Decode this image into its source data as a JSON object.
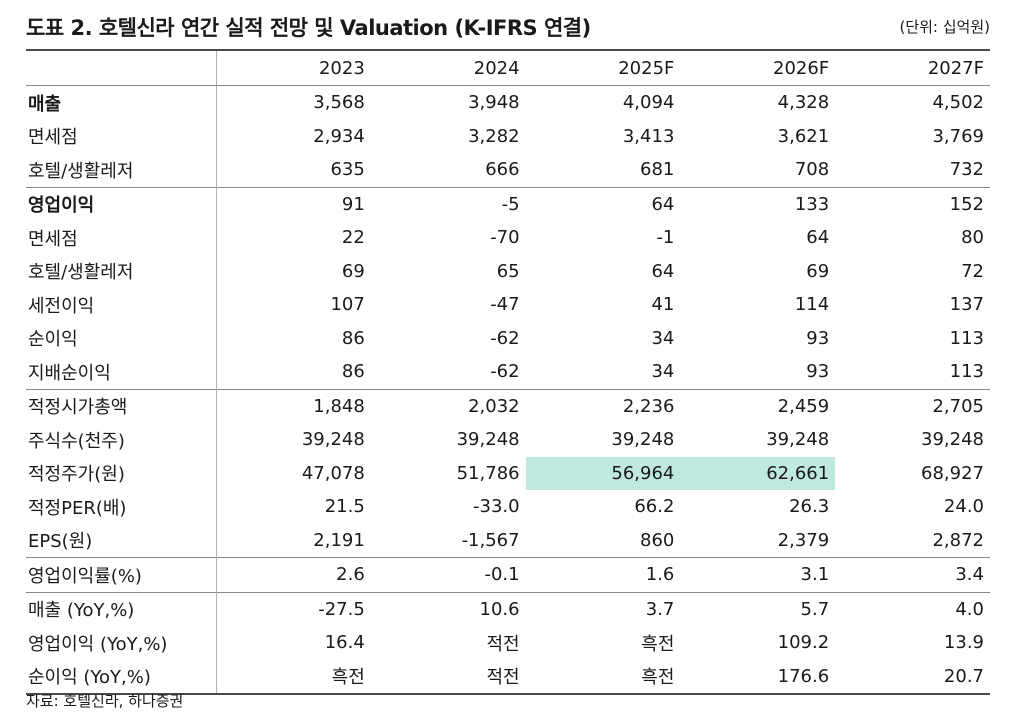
{
  "header": {
    "title": "도표 2. 호텔신라 연간 실적 전망 및 Valuation (K-IFRS 연결)",
    "unit": "(단위: 십억원)"
  },
  "table": {
    "columns": [
      "2023",
      "2024",
      "2025F",
      "2026F",
      "2027F"
    ],
    "rows": [
      {
        "label": "매출",
        "values": [
          "3,568",
          "3,948",
          "4,094",
          "4,328",
          "4,502"
        ]
      },
      {
        "label": "면세점",
        "values": [
          "2,934",
          "3,282",
          "3,413",
          "3,621",
          "3,769"
        ]
      },
      {
        "label": "호텔/생활레저",
        "values": [
          "635",
          "666",
          "681",
          "708",
          "732"
        ]
      },
      {
        "label": "영업이익",
        "values": [
          "91",
          "-5",
          "64",
          "133",
          "152"
        ]
      },
      {
        "label": "면세점",
        "values": [
          "22",
          "-70",
          "-1",
          "64",
          "80"
        ]
      },
      {
        "label": "호텔/생활레저",
        "values": [
          "69",
          "65",
          "64",
          "69",
          "72"
        ]
      },
      {
        "label": "세전이익",
        "values": [
          "107",
          "-47",
          "41",
          "114",
          "137"
        ]
      },
      {
        "label": "순이익",
        "values": [
          "86",
          "-62",
          "34",
          "93",
          "113"
        ]
      },
      {
        "label": "지배순이익",
        "values": [
          "86",
          "-62",
          "34",
          "93",
          "113"
        ]
      },
      {
        "label": "적정시가총액",
        "values": [
          "1,848",
          "2,032",
          "2,236",
          "2,459",
          "2,705"
        ]
      },
      {
        "label": "주식수(천주)",
        "values": [
          "39,248",
          "39,248",
          "39,248",
          "39,248",
          "39,248"
        ]
      },
      {
        "label": "적정주가(원)",
        "values": [
          "47,078",
          "51,786",
          "56,964",
          "62,661",
          "68,927"
        ]
      },
      {
        "label": "적정PER(배)",
        "values": [
          "21.5",
          "-33.0",
          "66.2",
          "26.3",
          "24.0"
        ]
      },
      {
        "label": "EPS(원)",
        "values": [
          "2,191",
          "-1,567",
          "860",
          "2,379",
          "2,872"
        ]
      },
      {
        "label": "영업이익률(%)",
        "values": [
          "2.6",
          "-0.1",
          "1.6",
          "3.1",
          "3.4"
        ]
      },
      {
        "label": "매출 (YoY,%)",
        "values": [
          "-27.5",
          "10.6",
          "3.7",
          "5.7",
          "4.0"
        ]
      },
      {
        "label": "영업이익 (YoY,%)",
        "values": [
          "16.4",
          "적전",
          "흑전",
          "109.2",
          "13.9"
        ]
      },
      {
        "label": "순이익 (YoY,%)",
        "values": [
          "흑전",
          "적전",
          "흑전",
          "176.6",
          "20.7"
        ]
      }
    ],
    "highlight_color": "#bfe8de"
  },
  "footer": {
    "source": "자료: 호텔신라, 하나증권"
  }
}
